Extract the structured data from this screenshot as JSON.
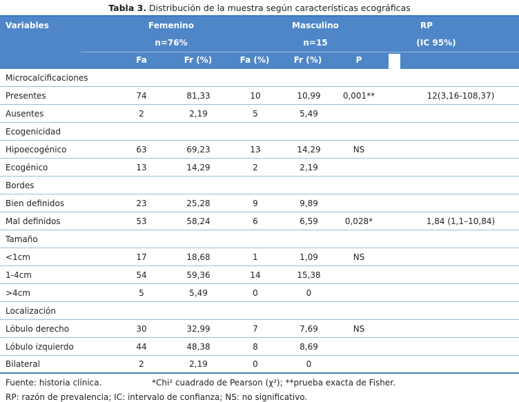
{
  "title": {
    "bold": "Tabla 3.",
    "rest": " Distribución de la muestra según características ecográficas"
  },
  "colors": {
    "header_fill": "#4e86c8",
    "header_top_border": "#3575c8",
    "row_separator": "#9cbcd4",
    "bottom_border": "#4a80bf",
    "header_text": "#ffffff",
    "body_text": "#1f1f1f"
  },
  "header": {
    "variables": "Variables",
    "femenino": {
      "label": "Femenino",
      "sub": "n=76%"
    },
    "masculino": {
      "label": "Masculino",
      "sub": "n=15"
    },
    "rp": {
      "label": "RP",
      "sub": "(IC 95%)"
    },
    "cols": [
      "Fa",
      "Fr (%)",
      "Fa (%)",
      "Fr (%)",
      "P"
    ]
  },
  "rows": [
    {
      "type": "section",
      "label": "Microcalcificaciones"
    },
    {
      "type": "data",
      "label": "Presentes",
      "fa": "74",
      "fr1": "81,33",
      "fa2": "10",
      "fr2": "10,99",
      "p": "0,001**",
      "rp": "12(3,16-108,37)"
    },
    {
      "type": "data",
      "label": "Ausentes",
      "fa": "2",
      "fr1": "2,19",
      "fa2": "5",
      "fr2": "5,49",
      "p": "",
      "rp": ""
    },
    {
      "type": "section",
      "label": "Ecogenicidad"
    },
    {
      "type": "data",
      "label": "Hipoecogénico",
      "fa": "63",
      "fr1": "69,23",
      "fa2": "13",
      "fr2": "14,29",
      "p": "NS",
      "rp": ""
    },
    {
      "type": "data",
      "label": "Ecogénico",
      "fa": "13",
      "fr1": "14,29",
      "fa2": "2",
      "fr2": "2,19",
      "p": "",
      "rp": ""
    },
    {
      "type": "section",
      "label": "Bordes"
    },
    {
      "type": "data",
      "label": "Bien definidos",
      "fa": "23",
      "fr1": "25,28",
      "fa2": "9",
      "fr2": "9,89",
      "p": "",
      "rp": ""
    },
    {
      "type": "data",
      "label": "Mal definidos",
      "fa": "53",
      "fr1": "58,24",
      "fa2": "6",
      "fr2": "6,59",
      "p": "0,028*",
      "rp": "1,84 (1,1–10,84)"
    },
    {
      "type": "section",
      "label": "Tamaño"
    },
    {
      "type": "data",
      "label": "<1cm",
      "fa": "17",
      "fr1": "18,68",
      "fa2": "1",
      "fr2": "1,09",
      "p": "NS",
      "rp": ""
    },
    {
      "type": "data",
      "label": "1-4cm",
      "fa": "54",
      "fr1": "59,36",
      "fa2": "14",
      "fr2": "15,38",
      "p": "",
      "rp": ""
    },
    {
      "type": "data",
      "label": ">4cm",
      "fa": "5",
      "fr1": "5,49",
      "fa2": "0",
      "fr2": "0",
      "p": "",
      "rp": ""
    },
    {
      "type": "section",
      "label": "Localización"
    },
    {
      "type": "data",
      "label": "Lóbulo derecho",
      "fa": "30",
      "fr1": "32,99",
      "fa2": "7",
      "fr2": "7,69",
      "p": "NS",
      "rp": ""
    },
    {
      "type": "data",
      "label": "Lóbulo izquierdo",
      "fa": "44",
      "fr1": "48,38",
      "fa2": "8",
      "fr2": "8,69",
      "p": "",
      "rp": ""
    },
    {
      "type": "data",
      "label": "Bilateral",
      "fa": "2",
      "fr1": "2,19",
      "fa2": "0",
      "fr2": "0",
      "p": "",
      "rp": ""
    }
  ],
  "footer": {
    "source": "Fuente: historia clínica.",
    "tests": "*Chi² cuadrado de Pearson (χ²); **prueba exacta de Fisher.",
    "abbrev": "RP: razón de prevalencia; IC: intervalo de confianza; NS: no significativo."
  }
}
